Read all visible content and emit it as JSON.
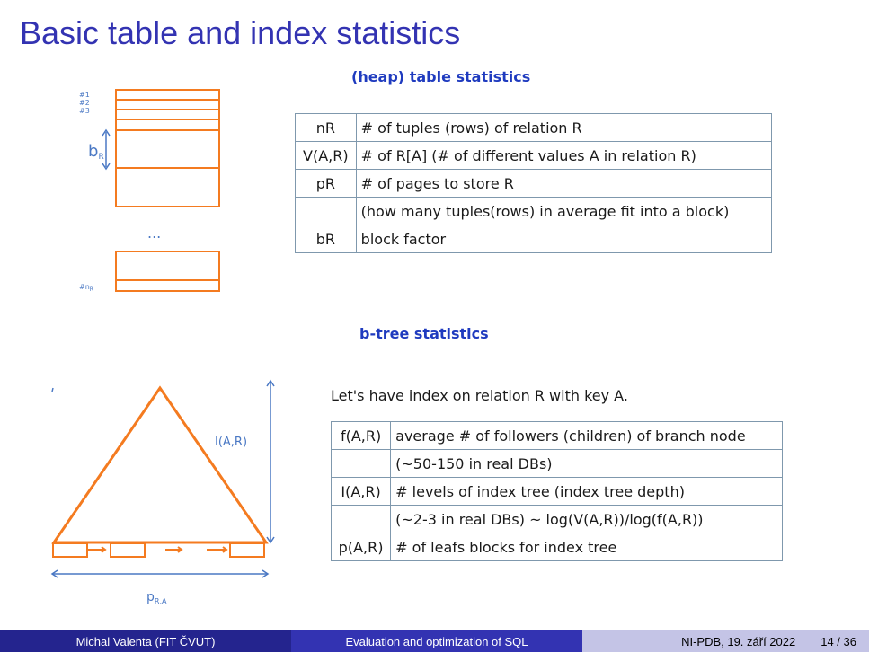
{
  "slide": {
    "title": "Basic table and index statistics"
  },
  "heap": {
    "heading": "(heap) table statistics",
    "figure": {
      "row_labels": [
        "#1",
        "#2",
        "#3"
      ],
      "block_label": "b",
      "block_label_sub": "R",
      "ellipsis": "...",
      "last_label": "#n",
      "last_label_sub": "R"
    },
    "rows": [
      {
        "key": "nR",
        "desc": "# of tuples (rows) of relation R"
      },
      {
        "key": "V(A,R)",
        "desc": "# of R[A] (# of different values A in relation R)"
      },
      {
        "key": "pR",
        "desc": "# of pages to store R"
      },
      {
        "key": "",
        "desc": "(how many tuples(rows) in average fit into a block)"
      },
      {
        "key": "bR",
        "desc": "block factor"
      }
    ]
  },
  "btree": {
    "heading": "b-tree statistics",
    "intro": "Let's have index on relation R with key A.",
    "figure": {
      "height_label": "I(A,R)",
      "width_label": "p",
      "width_label_sub": "R,A"
    },
    "rows": [
      {
        "key": "f(A,R)",
        "desc": "average # of followers (children) of branch node"
      },
      {
        "key": "",
        "desc": "(~50-150 in real DBs)"
      },
      {
        "key": "I(A,R)",
        "desc": "# levels of index tree (index tree depth)"
      },
      {
        "key": "",
        "desc": "(~2-3 in real DBs) ~ log(V(A,R))/log(f(A,R))"
      },
      {
        "key": "p(A,R)",
        "desc": "# of leafs blocks for index tree"
      }
    ]
  },
  "colors": {
    "title": "#3333b2",
    "heading": "#1f3bbf",
    "figure_orange": "#f47b20",
    "figure_blue": "#4a78c4",
    "footer_dark": "#24248e",
    "footer_mid": "#3333b2",
    "footer_light": "#c4c4e6"
  },
  "footer": {
    "author": "Michal Valenta (FIT ČVUT)",
    "course_title": "Evaluation and optimization of SQL",
    "event": "NI-PDB, 19. září 2022",
    "page": "14 / 36"
  }
}
